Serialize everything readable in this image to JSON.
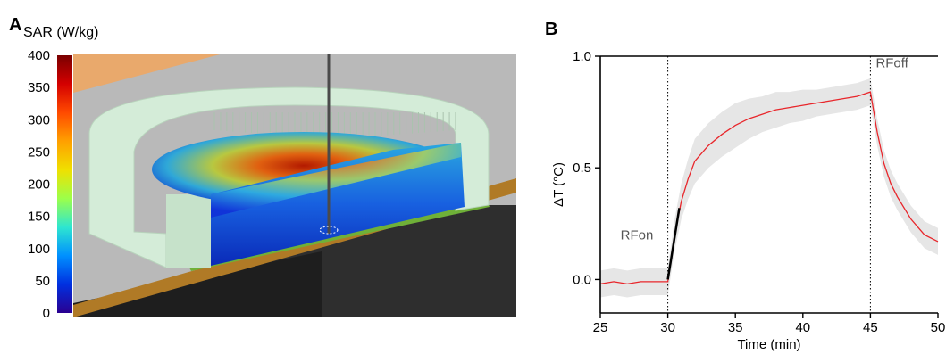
{
  "panels": {
    "a": "A",
    "b": "B"
  },
  "colorbar": {
    "title": "SAR (W/kg)",
    "ticks": [
      400,
      350,
      300,
      250,
      200,
      150,
      100,
      50,
      0
    ],
    "colormap": [
      "#7a0000",
      "#d40000",
      "#ff4a00",
      "#ffa000",
      "#f0e000",
      "#9cff4a",
      "#2ee6d0",
      "#0090ff",
      "#0030e0",
      "#2a0090"
    ]
  },
  "chart_data": [
    {
      "type": "colorbar",
      "title": "SAR (W/kg)",
      "range": [
        0,
        400
      ],
      "ticks": [
        0,
        50,
        100,
        150,
        200,
        250,
        300,
        350,
        400
      ]
    },
    {
      "type": "line",
      "title": "",
      "xlabel": "Time (min)",
      "ylabel": "ΔT (°C)",
      "xlim": [
        25,
        50
      ],
      "ylim": [
        -0.15,
        1.0
      ],
      "xticks": [
        25,
        30,
        35,
        40,
        45,
        50
      ],
      "yticks": [
        0.0,
        0.5,
        1.0
      ],
      "ytick_labels": [
        "0.0",
        "0.5",
        "1.0"
      ],
      "grid": false,
      "series": [
        {
          "color": "#e8262b",
          "band_color": "#e6e6e6",
          "x": [
            25,
            26,
            27,
            28,
            29,
            30,
            30.5,
            31,
            31.5,
            32,
            33,
            34,
            35,
            36,
            37,
            38,
            39,
            40,
            41,
            42,
            43,
            44,
            45,
            45.5,
            46,
            46.5,
            47,
            48,
            49,
            50
          ],
          "y": [
            -0.02,
            -0.01,
            -0.02,
            -0.01,
            -0.01,
            -0.01,
            0.2,
            0.35,
            0.45,
            0.53,
            0.6,
            0.65,
            0.69,
            0.72,
            0.74,
            0.76,
            0.77,
            0.78,
            0.79,
            0.8,
            0.81,
            0.82,
            0.84,
            0.66,
            0.52,
            0.43,
            0.37,
            0.27,
            0.2,
            0.17
          ],
          "band": [
            0.06,
            0.06,
            0.06,
            0.06,
            0.06,
            0.06,
            0.07,
            0.08,
            0.09,
            0.1,
            0.1,
            0.1,
            0.1,
            0.09,
            0.08,
            0.08,
            0.07,
            0.07,
            0.06,
            0.06,
            0.06,
            0.06,
            0.06,
            0.06,
            0.06,
            0.06,
            0.06,
            0.06,
            0.06,
            0.06
          ]
        },
        {
          "color": "#000000",
          "x": [
            30,
            30.85
          ],
          "y": [
            0.0,
            0.32
          ]
        }
      ],
      "vlines": [
        30,
        45
      ],
      "annotations": [
        {
          "text": "RFon",
          "x": 26.5,
          "y": 0.2
        },
        {
          "text": "RFoff",
          "x": 45.4,
          "y": 0.97
        }
      ]
    }
  ]
}
